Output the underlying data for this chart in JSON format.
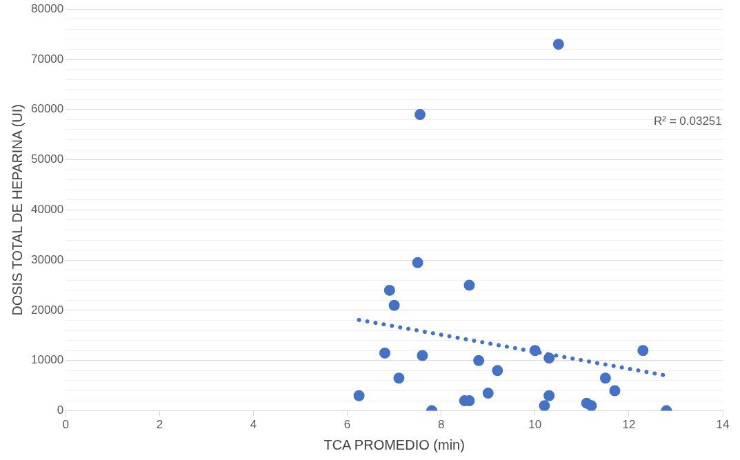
{
  "chart_data": {
    "type": "scatter",
    "xlabel": "TCA PROMEDIO (min)",
    "ylabel": "DOSIS TOTAL DE HEPARINA (UI)",
    "annotations": [
      "R² = 0.03251"
    ],
    "xlim": [
      0,
      14
    ],
    "xticks": [
      0,
      2,
      4,
      6,
      8,
      10,
      12,
      14
    ],
    "ylim": [
      0,
      80000
    ],
    "yticks": [
      0,
      {
        "value": 2000,
        "label": null
      },
      {
        "value": 4000,
        "label": null
      },
      {
        "value": 6000,
        "label": null
      },
      {
        "value": 8000,
        "label": null
      },
      10000,
      {
        "value": 12000,
        "label": null
      },
      {
        "value": 14000,
        "label": null
      },
      {
        "value": 16000,
        "label": null
      },
      {
        "value": 18000,
        "label": null
      },
      20000,
      {
        "value": 22000,
        "label": null
      },
      {
        "value": 24000,
        "label": null
      },
      {
        "value": 26000,
        "label": null
      },
      {
        "value": 28000,
        "label": null
      },
      30000,
      {
        "value": 32000,
        "label": null
      },
      {
        "value": 34000,
        "label": null
      },
      {
        "value": 36000,
        "label": null
      },
      {
        "value": 38000,
        "label": null
      },
      40000,
      {
        "value": 42000,
        "label": null
      },
      {
        "value": 44000,
        "label": null
      },
      {
        "value": 46000,
        "label": null
      },
      {
        "value": 48000,
        "label": null
      },
      50000,
      {
        "value": 52000,
        "label": null
      },
      {
        "value": 54000,
        "label": null
      },
      {
        "value": 56000,
        "label": null
      },
      {
        "value": 58000,
        "label": null
      },
      60000,
      {
        "value": 62000,
        "label": null
      },
      {
        "value": 64000,
        "label": null
      },
      {
        "value": 66000,
        "label": null
      },
      {
        "value": 68000,
        "label": null
      },
      70000,
      {
        "value": 72000,
        "label": null
      },
      {
        "value": 74000,
        "label": null
      },
      {
        "value": 76000,
        "label": null
      },
      {
        "value": 78000,
        "label": null
      },
      80000
    ],
    "grid": "y",
    "legend": false,
    "marker": "circle",
    "series": [
      {
        "color": "#4472c4",
        "x": [
          6.25,
          6.8,
          6.9,
          7.0,
          7.1,
          7.5,
          7.55,
          7.6,
          7.8,
          8.5,
          8.6,
          8.6,
          8.8,
          9.0,
          9.2,
          10.0,
          10.2,
          10.3,
          10.3,
          10.5,
          11.1,
          11.2,
          11.5,
          11.7,
          12.3,
          12.8
        ],
        "values": [
          3000,
          11500,
          24000,
          21000,
          6500,
          29500,
          59000,
          11000,
          0,
          2000,
          2000,
          25000,
          10000,
          3500,
          8000,
          12000,
          1000,
          10500,
          3000,
          73000,
          1500,
          1000,
          6500,
          4000,
          12000,
          0
        ]
      },
      {
        "type": "line",
        "color": "#4472c4",
        "line_style": "dotted",
        "marker": "none",
        "x": [
          6.25,
          12.75
        ],
        "values": [
          18100,
          7100
        ]
      }
    ]
  }
}
